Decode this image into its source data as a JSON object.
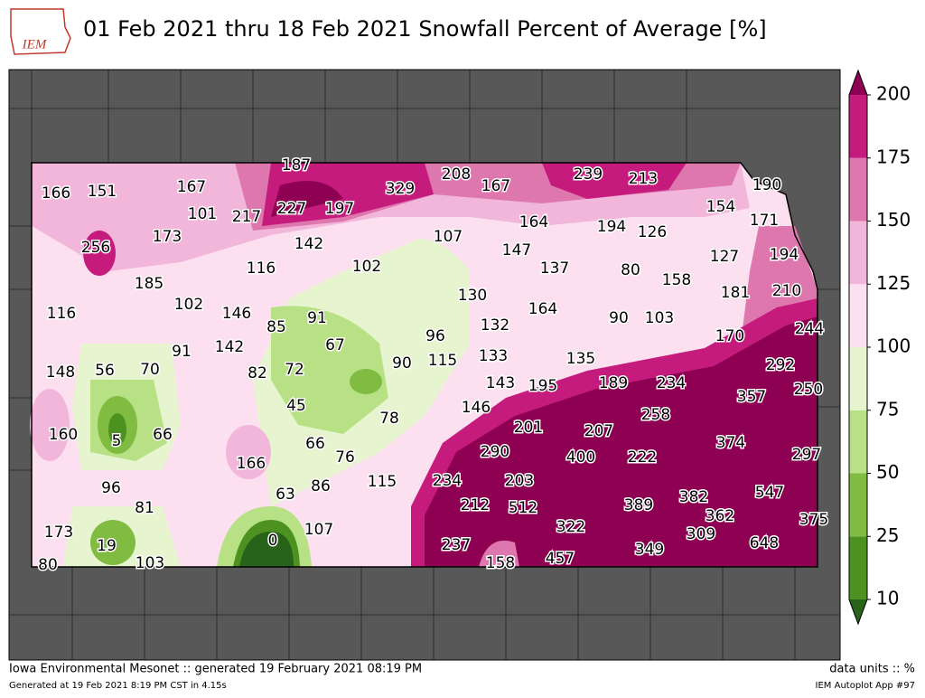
{
  "header": {
    "logo": "IEM",
    "title": "01 Feb 2021 thru 18 Feb 2021 Snowfall Percent of Average [%]"
  },
  "map": {
    "values": [
      166,
      151,
      167,
      187,
      329,
      208,
      167,
      239,
      213,
      190,
      101,
      217,
      227,
      197,
      164,
      194,
      126,
      154,
      171,
      256,
      173,
      142,
      107,
      147,
      194,
      127,
      116,
      102,
      137,
      80,
      158,
      185,
      181,
      210,
      116,
      102,
      146,
      130,
      164,
      91,
      85,
      90,
      103,
      132,
      244,
      170,
      96,
      67,
      91,
      142,
      135,
      133,
      148,
      56,
      70,
      82,
      72,
      90,
      115,
      292,
      143,
      195,
      189,
      234,
      357,
      250,
      45,
      146,
      78,
      258,
      160,
      5,
      66,
      201,
      207,
      374,
      66,
      76,
      166,
      290,
      400,
      222,
      297,
      96,
      63,
      86,
      115,
      234,
      203,
      547,
      382,
      389,
      81,
      212,
      512,
      362,
      375,
      173,
      107,
      322,
      309,
      648,
      19,
      0,
      237,
      349,
      80,
      103,
      158,
      457
    ]
  },
  "colorbar": {
    "ticks": [
      10,
      25,
      50,
      75,
      100,
      125,
      150,
      175,
      200
    ],
    "colors": [
      "#4d9221",
      "#7fbc41",
      "#b8e186",
      "#e6f5d0",
      "#fde0ef",
      "#f1b6da",
      "#de77ae",
      "#c51b7d"
    ],
    "under_color": "#276419",
    "over_color": "#8e0152"
  },
  "footer": {
    "left": "Iowa Environmental Mesonet :: generated 19 February 2021 08:19 PM",
    "left_small": "Generated at 19 Feb 2021 8:19 PM CST in 4.15s",
    "right": "data units :: %",
    "right_small": "IEM Autoplot App #97"
  }
}
